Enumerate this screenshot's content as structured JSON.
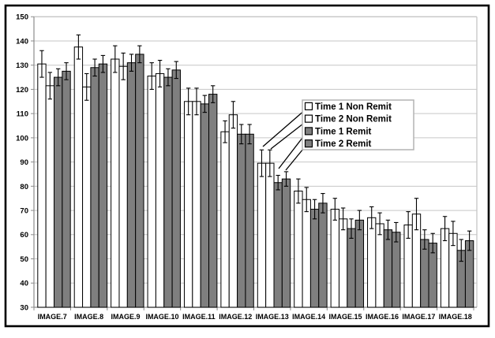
{
  "chart_data": {
    "type": "bar",
    "title": "",
    "xlabel": "",
    "ylabel": "",
    "ylim": [
      30,
      150
    ],
    "ytick_step": 10,
    "grid": true,
    "error_bars": true,
    "legend_position": "inside-right",
    "categories": [
      "IMAGE.7",
      "IMAGE.8",
      "IMAGE.9",
      "IMAGE.10",
      "IMAGE.11",
      "IMAGE.12",
      "IMAGE.13",
      "IMAGE.14",
      "IMAGE.15",
      "IMAGE.16",
      "IMAGE.17",
      "IMAGE.18"
    ],
    "series": [
      {
        "name": "Time 1 Non Remit",
        "fill": "#ffffff",
        "values": [
          130.5,
          137.5,
          132.5,
          125.5,
          115,
          102.5,
          89.5,
          78,
          70.5,
          67,
          64,
          62.5
        ],
        "errors": [
          5.5,
          5,
          5.5,
          5.5,
          5.5,
          4.5,
          5.5,
          5,
          4.5,
          4.5,
          5.5,
          5
        ]
      },
      {
        "name": "Time 2 Non Remit",
        "fill": "#ffffff",
        "values": [
          121.5,
          121,
          129.5,
          126.5,
          115,
          109.5,
          89.5,
          74.5,
          66.5,
          64.5,
          68.5,
          60.5
        ],
        "errors": [
          5.5,
          5.5,
          5.5,
          5.5,
          5.5,
          5.5,
          5.5,
          5,
          4.5,
          4.5,
          6.5,
          5
        ]
      },
      {
        "name": "Time 1 Remit",
        "fill": "#7f7f7f",
        "values": [
          125,
          129,
          131,
          125,
          114,
          101.5,
          81.5,
          70.5,
          62.5,
          62,
          58,
          53.5
        ],
        "errors": [
          3.5,
          3.5,
          3.5,
          3.5,
          3.5,
          4,
          3,
          4,
          4,
          4,
          4,
          4.5
        ]
      },
      {
        "name": "Time 2 Remit",
        "fill": "#7f7f7f",
        "values": [
          127.5,
          130.5,
          134.5,
          128,
          118,
          101.5,
          83,
          73,
          66,
          61,
          56.5,
          57.5
        ],
        "errors": [
          3.5,
          3.5,
          3.5,
          3.5,
          3.5,
          4,
          3,
          4,
          4,
          4,
          4,
          4
        ]
      }
    ],
    "colors": {
      "background": "#ffffff",
      "frame_border": "#000000",
      "plot_border": "#c0c0c0",
      "gridline": "#c6c6c6",
      "axis": "#8c8c8c",
      "bar_stroke": "#000000",
      "error_bar": "#000000",
      "legend_border": "#b3b3b3",
      "legend_background": "#ffffff",
      "label_color": "#000000"
    },
    "legend": {
      "items": [
        "Time 1 Non Remit",
        "Time 2 Non Remit",
        "Time 1 Remit",
        "Time 2 Remit"
      ]
    }
  }
}
